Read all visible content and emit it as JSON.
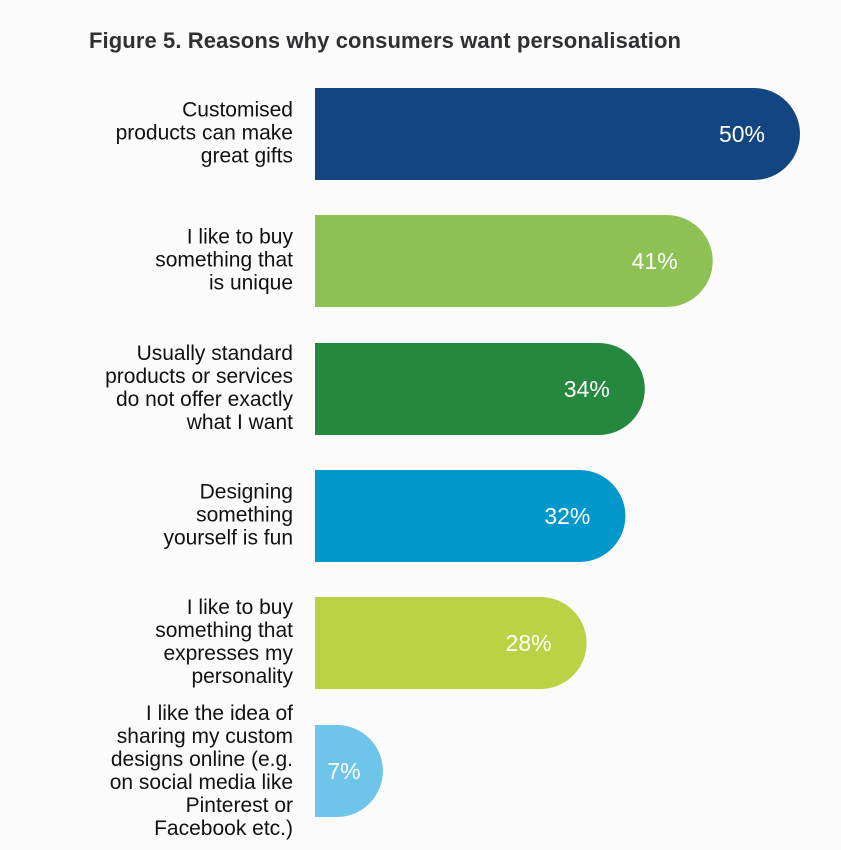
{
  "chart_data": {
    "type": "bar",
    "orientation": "horizontal",
    "title": "Figure 5. Reasons why consumers want personalisation",
    "categories": [
      "Customised products can make great gifts",
      "I like to buy something that is unique",
      "Usually standard products or services do not offer exactly what I want",
      "Designing something yourself is fun",
      "I like to buy something that expresses my personality",
      "I like the idea of sharing my custom designs online (e.g. on social media like Pinterest or Facebook etc.)"
    ],
    "category_lines": [
      [
        "Customised",
        "products can make",
        "great gifts"
      ],
      [
        "I like to buy",
        "something that",
        "is unique"
      ],
      [
        "Usually standard",
        "products or services",
        "do not offer exactly",
        "what I want"
      ],
      [
        "Designing",
        "something",
        "yourself is fun"
      ],
      [
        "I like to buy",
        "something that",
        "expresses my",
        "personality"
      ],
      [
        "I like the idea of",
        "sharing my custom",
        "designs online (e.g.",
        "on social media like",
        "Pinterest or",
        "Facebook etc.)"
      ]
    ],
    "values": [
      50,
      41,
      34,
      32,
      28,
      7
    ],
    "value_labels": [
      "50%",
      "41%",
      "34%",
      "32%",
      "28%",
      "7%"
    ],
    "colors": [
      "#134681",
      "#8dc153",
      "#25883e",
      "#0298cb",
      "#bbd245",
      "#6fc4e9"
    ],
    "unit": "%",
    "xlim": [
      0,
      50
    ],
    "grid": false,
    "legend": "none"
  }
}
